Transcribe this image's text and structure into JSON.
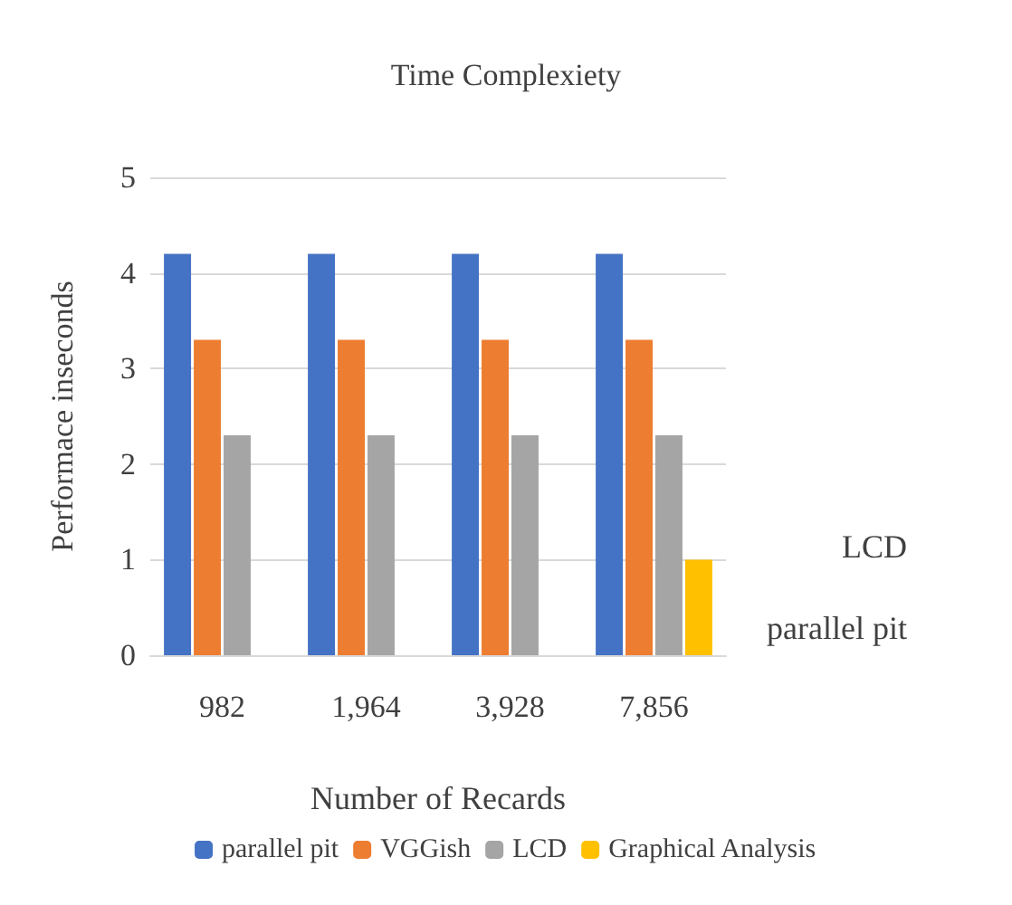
{
  "chart_data": {
    "type": "bar",
    "title": "Time Complexiety",
    "xlabel": "Number of Recards",
    "ylabel": "Performace inseconds",
    "categories": [
      "982",
      "1,964",
      "3,928",
      "7,856"
    ],
    "series": [
      {
        "name": "parallel pit",
        "color": "#4472c4",
        "values": [
          4.2,
          4.2,
          4.2,
          4.2
        ]
      },
      {
        "name": "VGGish",
        "color": "#ed7d31",
        "values": [
          3.3,
          3.3,
          3.3,
          3.3
        ]
      },
      {
        "name": "LCD",
        "color": "#a5a5a5",
        "values": [
          2.3,
          2.3,
          2.3,
          2.3
        ]
      },
      {
        "name": "Graphical Analysis",
        "color": "#ffc000",
        "values": [
          null,
          null,
          null,
          1.0
        ]
      }
    ],
    "ylim": [
      0,
      5
    ],
    "yticks": [
      0,
      1,
      2,
      3,
      4,
      5
    ],
    "grid": "y",
    "legend": "bottom",
    "annotations": [
      "LCD",
      "parallel pit"
    ]
  }
}
